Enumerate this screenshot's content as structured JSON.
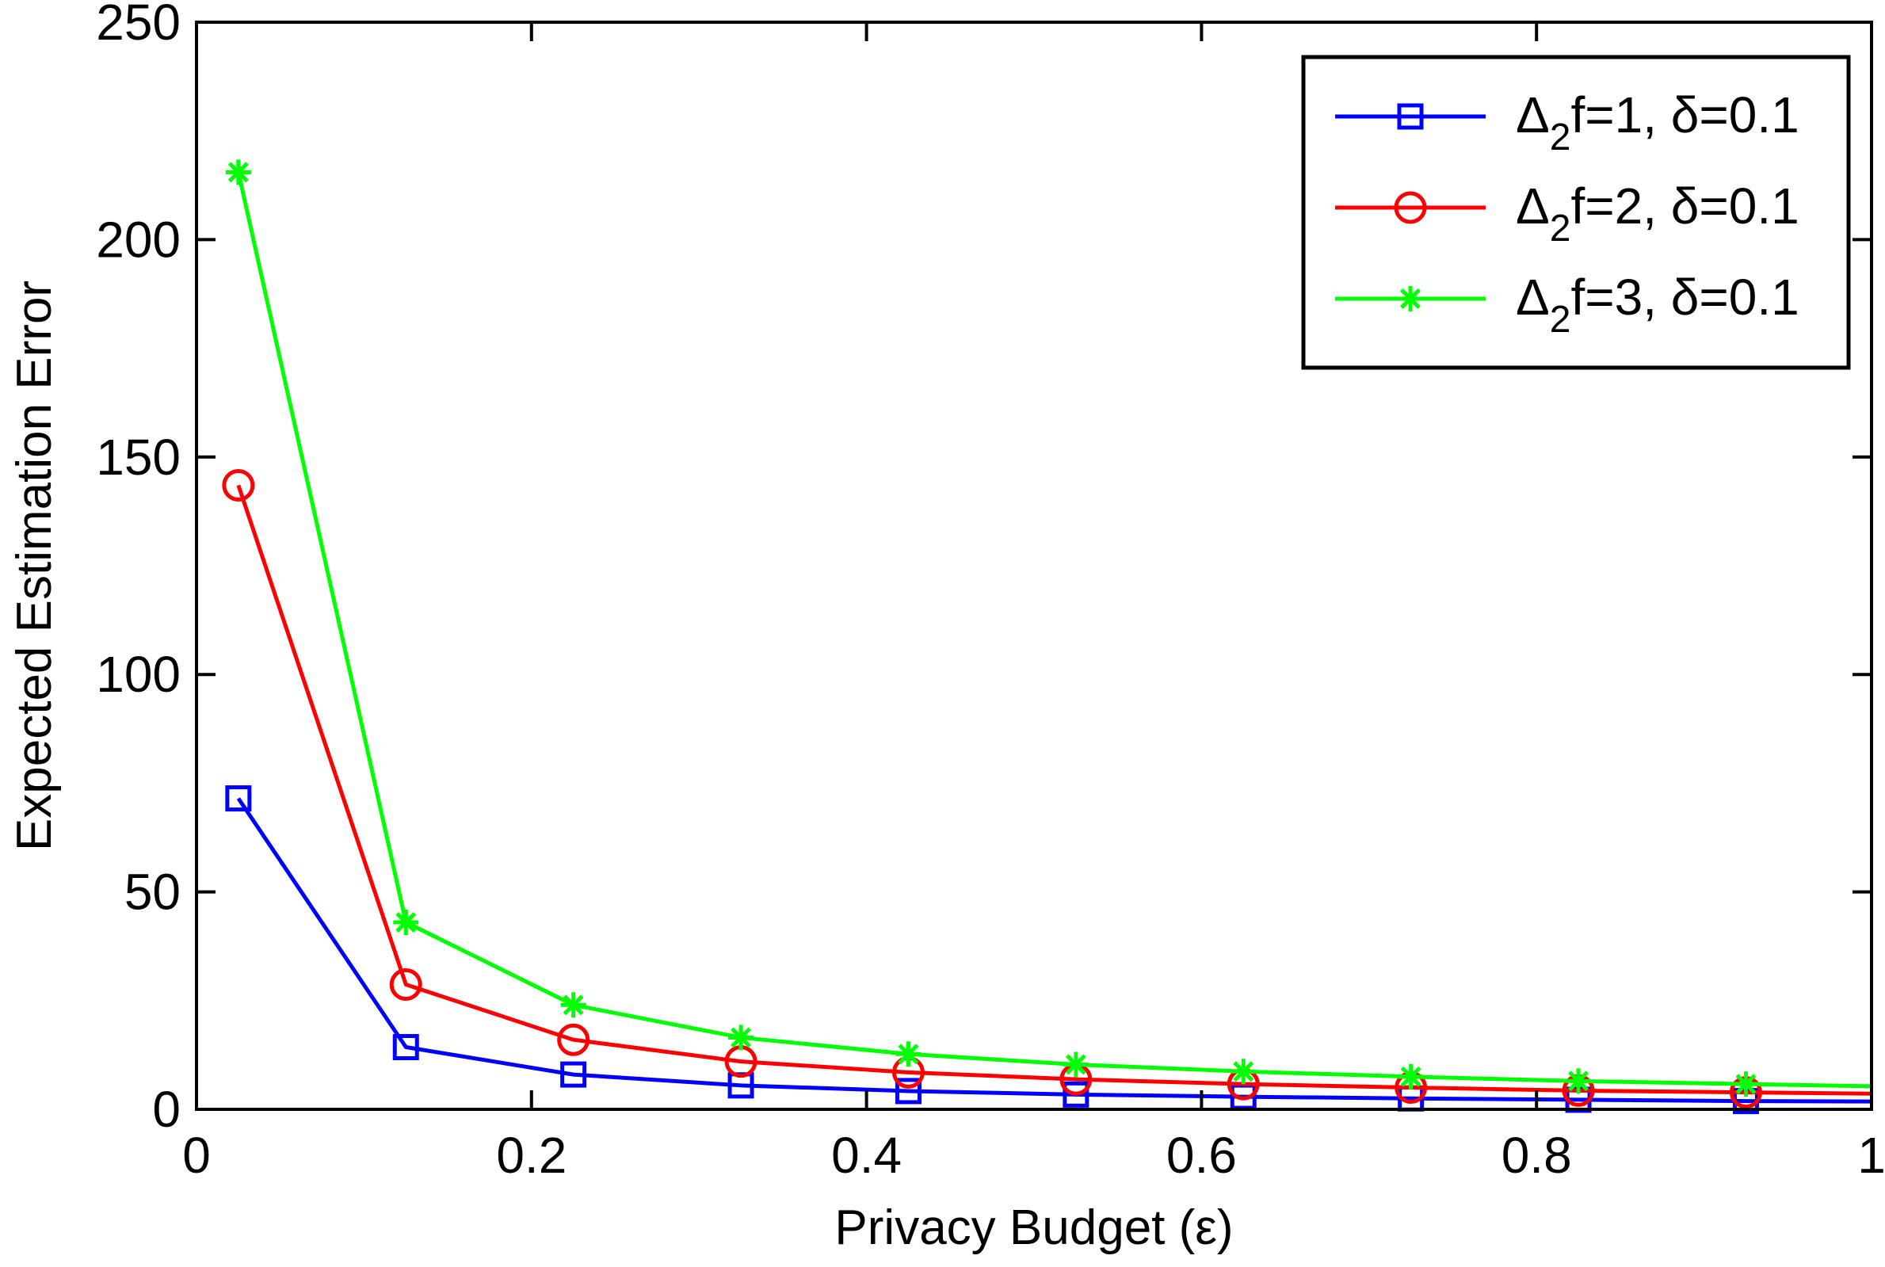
{
  "chart_data": {
    "type": "line",
    "title": "",
    "xlabel": "Privacy Budget (ε)",
    "ylabel": "Expected Estimation Error",
    "xlim": [
      0,
      1
    ],
    "ylim": [
      0,
      250
    ],
    "xticks": [
      0,
      0.2,
      0.4,
      0.6,
      0.8,
      1
    ],
    "xtick_labels": [
      "0",
      "0.2",
      "0.4",
      "0.6",
      "0.8",
      "1"
    ],
    "yticks": [
      0,
      50,
      100,
      150,
      200,
      250
    ],
    "ytick_labels": [
      "0",
      "50",
      "100",
      "150",
      "200",
      "250"
    ],
    "grid": false,
    "legend_position": "top-right",
    "x": [
      0.025,
      0.125,
      0.225,
      0.325,
      0.425,
      0.525,
      0.625,
      0.725,
      0.825,
      0.925,
      1.0
    ],
    "series": [
      {
        "name": "Δ₂f=1, δ=0.1",
        "legend_main": "Δ",
        "legend_sub": "2",
        "legend_rest": "f=1, δ=0.1",
        "color": "#0000ff",
        "marker": "square",
        "values": [
          71.5,
          14.3,
          8.0,
          5.5,
          4.2,
          3.4,
          2.9,
          2.5,
          2.2,
          1.9,
          1.8
        ],
        "marker_count": 10
      },
      {
        "name": "Δ₂f=2, δ=0.1",
        "legend_main": "Δ",
        "legend_sub": "2",
        "legend_rest": "f=2, δ=0.1",
        "color": "#ff0000",
        "marker": "circle",
        "values": [
          143.5,
          28.7,
          16.0,
          11.0,
          8.5,
          6.9,
          5.8,
          5.0,
          4.3,
          3.9,
          3.6
        ],
        "marker_count": 10
      },
      {
        "name": "Δ₂f=3, δ=0.1",
        "legend_main": "Δ",
        "legend_sub": "2",
        "legend_rest": "f=3, δ=0.1",
        "color": "#00ff00",
        "marker": "asterisk",
        "values": [
          215.5,
          43.0,
          24.0,
          16.5,
          12.7,
          10.3,
          8.7,
          7.5,
          6.5,
          5.8,
          5.3
        ],
        "marker_count": 10
      }
    ]
  }
}
